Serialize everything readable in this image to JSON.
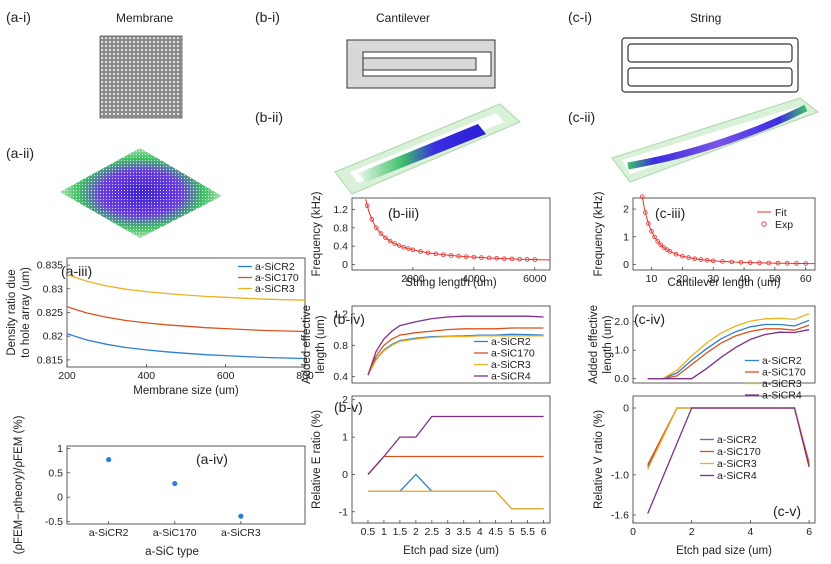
{
  "titles": {
    "membrane": "Membrane",
    "cantilever": "Cantilever",
    "string": "String"
  },
  "labels": {
    "ai": "(a-i)",
    "aii": "(a-ii)",
    "aiii": "(a-iii)",
    "aiv": "(a-iv)",
    "bi": "(b-i)",
    "bii": "(b-ii)",
    "biii": "(b-iii)",
    "biv": "(b-iv)",
    "bv": "(b-v)",
    "ci": "(c-i)",
    "cii": "(c-ii)",
    "ciii": "(c-iii)",
    "civ": "(c-iv)",
    "cv": "(c-v)"
  },
  "colors": {
    "blue": "#2b7fd4",
    "red": "#d9531e",
    "yellow": "#edb120",
    "purple": "#7e2f8e",
    "fit": "#e8322d"
  },
  "chart_data": [
    {
      "id": "aiii",
      "type": "line",
      "xlabel": "Membrane size (um)",
      "ylabel": [
        "Density ratio due",
        "to hole array (um)"
      ],
      "xlim": [
        200,
        800
      ],
      "ylim": [
        0.8135,
        0.8365
      ],
      "xticks": [
        200,
        400,
        600,
        800
      ],
      "yticks": [
        0.815,
        0.82,
        0.825,
        0.83,
        0.835
      ],
      "legend": [
        "a-SiCR2",
        "a-SiC170",
        "a-SiCR3"
      ],
      "series": [
        {
          "name": "a-SiCR2",
          "color": "#2b7fd4",
          "x": [
            200,
            250,
            300,
            350,
            400,
            450,
            500,
            550,
            600,
            650,
            700,
            750,
            800
          ],
          "y": [
            0.8205,
            0.8192,
            0.8183,
            0.8176,
            0.8171,
            0.8167,
            0.8164,
            0.8161,
            0.8159,
            0.8157,
            0.8155,
            0.8154,
            0.8153
          ]
        },
        {
          "name": "a-SiC170",
          "color": "#d9531e",
          "x": [
            200,
            250,
            300,
            350,
            400,
            450,
            500,
            550,
            600,
            650,
            700,
            750,
            800
          ],
          "y": [
            0.8262,
            0.8249,
            0.824,
            0.8233,
            0.8228,
            0.8224,
            0.8221,
            0.8218,
            0.8216,
            0.8214,
            0.8212,
            0.8211,
            0.821
          ]
        },
        {
          "name": "a-SiCR3",
          "color": "#edb120",
          "x": [
            200,
            250,
            300,
            350,
            400,
            450,
            500,
            550,
            600,
            650,
            700,
            750,
            800
          ],
          "y": [
            0.833,
            0.8316,
            0.8306,
            0.8299,
            0.8294,
            0.829,
            0.8287,
            0.8284,
            0.8282,
            0.828,
            0.8278,
            0.8277,
            0.8276
          ]
        }
      ]
    },
    {
      "id": "aiv",
      "type": "scatter",
      "xlabel": "a-SiC type",
      "ylabel": "(ρFEM−ρtheory)/ρFEM (%)",
      "categories": [
        "a-SiCR2",
        "a-SiC170",
        "a-SiCR3"
      ],
      "values": [
        0.77,
        0.28,
        -0.39
      ],
      "ylim": [
        -0.55,
        1.05
      ],
      "yticks": [
        -0.5,
        0,
        0.5,
        1
      ],
      "color": "#2b7fd4"
    },
    {
      "id": "biii",
      "type": "scatter",
      "xlabel": "String length (um)",
      "ylabel": "Frequency (kHz)",
      "xlim": [
        0,
        6500
      ],
      "ylim": [
        -0.12,
        1.45
      ],
      "xticks": [
        2000,
        4000,
        6000
      ],
      "yticks": [
        0,
        0.4,
        0.8,
        1.2
      ],
      "fit": "f = 640 / L",
      "x": [
        500,
        650,
        800,
        950,
        1100,
        1250,
        1400,
        1550,
        1700,
        1850,
        2000,
        2250,
        2500,
        2750,
        3000,
        3250,
        3500,
        3750,
        4000,
        4250,
        4500,
        4750,
        5000,
        5250,
        5500,
        5750,
        6000
      ],
      "y": [
        1.28,
        0.985,
        0.8,
        0.674,
        0.582,
        0.512,
        0.457,
        0.413,
        0.376,
        0.346,
        0.32,
        0.284,
        0.256,
        0.233,
        0.213,
        0.197,
        0.183,
        0.171,
        0.16,
        0.151,
        0.142,
        0.135,
        0.128,
        0.122,
        0.116,
        0.111,
        0.107
      ]
    },
    {
      "id": "ciii",
      "type": "scatter",
      "xlabel": "Cantilever length (um)",
      "ylabel": "Frequency (kHz)",
      "xlim": [
        4,
        63
      ],
      "ylim": [
        -0.2,
        2.4
      ],
      "xticks": [
        10,
        20,
        30,
        40,
        50,
        60
      ],
      "yticks": [
        0,
        1,
        2
      ],
      "legend": [
        "Fit",
        "Exp"
      ],
      "fit": "f = 120 / L^2",
      "x": [
        7,
        8,
        9,
        10,
        11,
        12,
        13,
        14,
        15,
        16,
        18,
        20,
        22,
        24,
        26,
        28,
        30,
        33,
        36,
        39,
        42,
        45,
        48,
        51,
        54,
        57,
        60
      ],
      "y": [
        2.449,
        1.875,
        1.481,
        1.2,
        0.992,
        0.833,
        0.71,
        0.612,
        0.533,
        0.469,
        0.37,
        0.3,
        0.248,
        0.208,
        0.178,
        0.153,
        0.133,
        0.11,
        0.093,
        0.079,
        0.068,
        0.059,
        0.052,
        0.046,
        0.041,
        0.037,
        0.033
      ]
    },
    {
      "id": "biv",
      "type": "line",
      "xlabel": "",
      "ylabel": [
        "Added effective",
        "length (um)"
      ],
      "xlim": [
        0,
        6.2
      ],
      "ylim": [
        0.32,
        1.3
      ],
      "xticks": [],
      "yticks": [
        0.4,
        0.8,
        1.2
      ],
      "legend": [
        "a-SiCR2",
        "a-SiC170",
        "a-SiCR3",
        "a-SiCR4"
      ],
      "series": [
        {
          "name": "a-SiCR2",
          "color": "#2b7fd4",
          "x": [
            0.5,
            0.75,
            1,
            1.25,
            1.5,
            2,
            2.5,
            3,
            3.5,
            4,
            4.5,
            5,
            5.5,
            6
          ],
          "y": [
            0.42,
            0.62,
            0.74,
            0.81,
            0.86,
            0.89,
            0.91,
            0.915,
            0.92,
            0.93,
            0.93,
            0.94,
            0.935,
            0.93
          ]
        },
        {
          "name": "a-SiC170",
          "color": "#d9531e",
          "x": [
            0.5,
            0.75,
            1,
            1.25,
            1.5,
            2,
            2.5,
            3,
            3.5,
            4,
            4.5,
            5,
            5.5,
            6
          ],
          "y": [
            0.42,
            0.66,
            0.8,
            0.88,
            0.93,
            0.96,
            0.98,
            1.0,
            1.01,
            1.01,
            1.01,
            1.02,
            1.02,
            1.02
          ]
        },
        {
          "name": "a-SiCR3",
          "color": "#edb120",
          "x": [
            0.5,
            0.75,
            1,
            1.25,
            1.5,
            2,
            2.5,
            3,
            3.5,
            4,
            4.5,
            5,
            5.5,
            6
          ],
          "y": [
            0.42,
            0.61,
            0.73,
            0.8,
            0.85,
            0.88,
            0.9,
            0.91,
            0.91,
            0.92,
            0.92,
            0.92,
            0.92,
            0.92
          ]
        },
        {
          "name": "a-SiCR4",
          "color": "#7e2f8e",
          "x": [
            0.5,
            0.75,
            1,
            1.25,
            1.5,
            2,
            2.5,
            3,
            3.5,
            4,
            4.5,
            5,
            5.5,
            6
          ],
          "y": [
            0.42,
            0.72,
            0.88,
            0.98,
            1.05,
            1.1,
            1.14,
            1.16,
            1.17,
            1.17,
            1.17,
            1.17,
            1.17,
            1.16
          ]
        }
      ]
    },
    {
      "id": "bv",
      "type": "line",
      "xlabel": "Etch pad size (um)",
      "ylabel": "Relative E ratio (%)",
      "xlim": [
        0,
        6.2
      ],
      "ylim": [
        -1.3,
        2.1
      ],
      "xticks": [
        0.5,
        1,
        1.5,
        2,
        2.5,
        3,
        3.5,
        4,
        4.5,
        5,
        5.5,
        6
      ],
      "yticks": [
        -1,
        0,
        1,
        2
      ],
      "series": [
        {
          "name": "a-SiCR2",
          "color": "#2b7fd4",
          "x": [
            0.5,
            1,
            1.5,
            2,
            2.5,
            3,
            3.5,
            4,
            4.5,
            5,
            5.5,
            6
          ],
          "y": [
            -0.45,
            -0.45,
            -0.45,
            0.0,
            -0.45,
            -0.45,
            -0.45,
            -0.45,
            -0.45,
            -0.92,
            -0.92,
            -0.92
          ]
        },
        {
          "name": "a-SiC170",
          "color": "#d9531e",
          "x": [
            0.5,
            1,
            1.5,
            2,
            2.5,
            3,
            3.5,
            4,
            4.5,
            5,
            5.5,
            6
          ],
          "y": [
            0.0,
            0.48,
            0.48,
            0.48,
            0.48,
            0.48,
            0.48,
            0.48,
            0.48,
            0.48,
            0.48,
            0.48
          ]
        },
        {
          "name": "a-SiCR3",
          "color": "#edb120",
          "x": [
            0.5,
            1,
            1.5,
            2,
            2.5,
            3,
            3.5,
            4,
            4.5,
            5,
            5.5,
            6
          ],
          "y": [
            -0.45,
            -0.45,
            -0.45,
            -0.45,
            -0.45,
            -0.45,
            -0.45,
            -0.45,
            -0.45,
            -0.92,
            -0.92,
            -0.92
          ]
        },
        {
          "name": "a-SiCR4",
          "color": "#7e2f8e",
          "x": [
            0.5,
            1,
            1.5,
            2,
            2.5,
            3,
            3.5,
            4,
            4.5,
            5,
            5.5,
            6
          ],
          "y": [
            0.0,
            0.48,
            1.0,
            1.0,
            1.55,
            1.55,
            1.55,
            1.55,
            1.55,
            1.55,
            1.55,
            1.55
          ]
        }
      ]
    },
    {
      "id": "civ",
      "type": "line",
      "xlabel": "",
      "ylabel": [
        "Added effective",
        "length (um)"
      ],
      "xlim": [
        0,
        6.2
      ],
      "ylim": [
        -0.15,
        2.55
      ],
      "xticks": [],
      "yticks": [
        0.0,
        1.0,
        2.0
      ],
      "ytickLabels": [
        "0.0",
        "1.0",
        "2.0"
      ],
      "legend": [
        "a-SiCR2",
        "a-SiC170",
        "a-SiCR3",
        "a-SiCR4"
      ],
      "series": [
        {
          "name": "a-SiCR2",
          "color": "#2b7fd4",
          "x": [
            0.5,
            1,
            1.5,
            2,
            2.5,
            3,
            3.5,
            4,
            4.5,
            5,
            5.5,
            6
          ],
          "y": [
            0.0,
            0.0,
            0.2,
            0.65,
            1.05,
            1.4,
            1.65,
            1.82,
            1.9,
            1.9,
            1.85,
            2.05
          ]
        },
        {
          "name": "a-SiC170",
          "color": "#d9531e",
          "x": [
            0.5,
            1,
            1.5,
            2,
            2.5,
            3,
            3.5,
            4,
            4.5,
            5,
            5.5,
            6
          ],
          "y": [
            0.0,
            0.0,
            0.1,
            0.5,
            0.9,
            1.25,
            1.5,
            1.66,
            1.75,
            1.75,
            1.7,
            1.88
          ]
        },
        {
          "name": "a-SiCR3",
          "color": "#edb120",
          "x": [
            0.5,
            1,
            1.5,
            2,
            2.5,
            3,
            3.5,
            4,
            4.5,
            5,
            5.5,
            6
          ],
          "y": [
            0.0,
            0.0,
            0.3,
            0.8,
            1.25,
            1.6,
            1.85,
            2.02,
            2.1,
            2.12,
            2.08,
            2.28
          ]
        },
        {
          "name": "a-SiCR4",
          "color": "#7e2f8e",
          "x": [
            0.5,
            1,
            1.5,
            2,
            2.5,
            3,
            3.5,
            4,
            4.5,
            5,
            5.5,
            6
          ],
          "y": [
            0.0,
            0.0,
            0.0,
            0.0,
            0.35,
            0.75,
            1.1,
            1.38,
            1.55,
            1.63,
            1.62,
            1.72
          ]
        }
      ]
    },
    {
      "id": "cv",
      "type": "line",
      "xlabel": "Etch pad size (um)",
      "ylabel": "Relative V ratio (%)",
      "xlim": [
        0,
        6.2
      ],
      "ylim": [
        -1.72,
        0.18
      ],
      "xticks": [
        0,
        2,
        4,
        6
      ],
      "yticks": [
        0,
        -1.0,
        -1.6
      ],
      "ytickLabels": [
        "0",
        "-1.0",
        "-1.6"
      ],
      "legend": [
        "a-SiCR2",
        "a-SiC170",
        "a-SiCR3",
        "a-SiCR4"
      ],
      "series": [
        {
          "name": "a-SiCR2",
          "color": "#2b7fd4",
          "x": [
            0.5,
            1.5,
            5.5,
            6
          ],
          "y": [
            -0.88,
            0.0,
            0.0,
            -0.85
          ]
        },
        {
          "name": "a-SiC170",
          "color": "#d9531e",
          "x": [
            0.5,
            1.5,
            5.5,
            6
          ],
          "y": [
            -0.85,
            0.0,
            0.0,
            -0.82
          ]
        },
        {
          "name": "a-SiCR3",
          "color": "#edb120",
          "x": [
            0.5,
            1.5,
            5.5,
            6
          ],
          "y": [
            -0.92,
            0.0,
            0.0,
            -0.88
          ]
        },
        {
          "name": "a-SiCR4",
          "color": "#7e2f8e",
          "x": [
            0.5,
            2,
            5.5,
            6
          ],
          "y": [
            -1.58,
            0.0,
            0.0,
            -0.88
          ]
        }
      ]
    }
  ]
}
